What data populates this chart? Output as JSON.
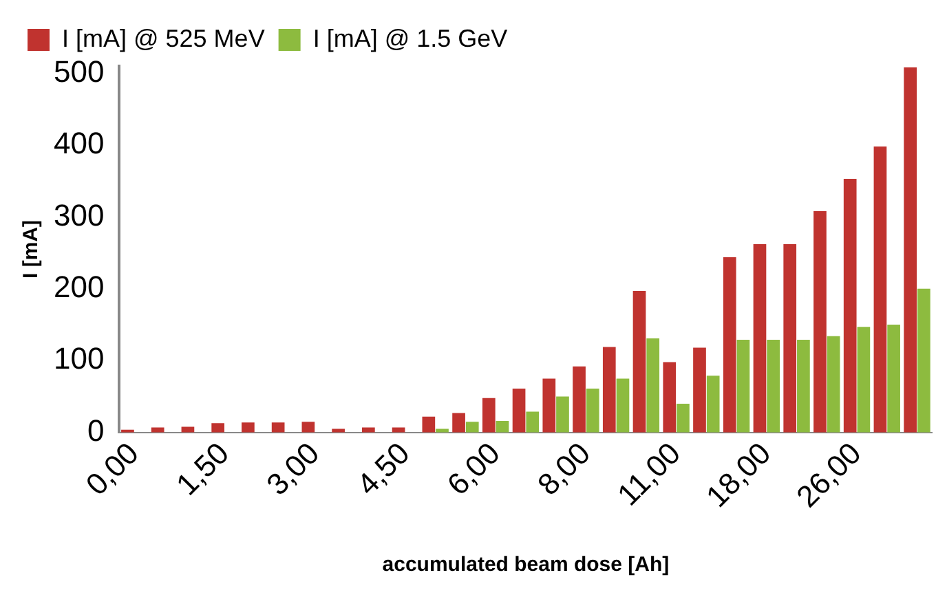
{
  "chart_data": {
    "type": "bar",
    "xlabel": "accumulated beam dose [Ah]",
    "ylabel": "I [mA]",
    "categories": [
      "0,00",
      null,
      null,
      "1,50",
      null,
      null,
      "3,00",
      null,
      null,
      "4,50",
      null,
      null,
      "6,00",
      null,
      null,
      "8,00",
      null,
      null,
      "11,00",
      null,
      null,
      "18,00",
      null,
      null,
      "26,00",
      null,
      null
    ],
    "series": [
      {
        "name": "I [mA] @ 525 MeV",
        "color": "#c0332f",
        "values": [
          4,
          7,
          8,
          13,
          14,
          14,
          15,
          5,
          7,
          7,
          22,
          27,
          48,
          61,
          75,
          92,
          119,
          197,
          98,
          118,
          244,
          262,
          262,
          308,
          353,
          398,
          508
        ]
      },
      {
        "name": "I [mA] @ 1.5 GeV",
        "color": "#8dbb3f",
        "values": [
          0,
          0,
          0,
          0,
          0,
          0,
          0,
          0,
          0,
          0,
          5,
          15,
          16,
          29,
          50,
          61,
          75,
          131,
          40,
          79,
          129,
          129,
          129,
          134,
          147,
          150,
          200
        ]
      }
    ],
    "ylim": [
      0,
      510
    ],
    "yticks": [
      0,
      100,
      200,
      300,
      400,
      500
    ],
    "grid": false,
    "legend": "top left"
  }
}
